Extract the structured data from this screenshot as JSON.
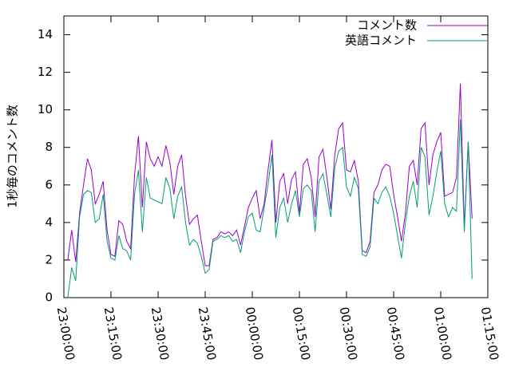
{
  "chart_data": {
    "type": "line",
    "ylabel": "1秒毎のコメント数",
    "ylim": [
      0,
      15
    ],
    "yticks": [
      0,
      2,
      4,
      6,
      8,
      10,
      12,
      14
    ],
    "xlim": [
      "23:00:00",
      "01:15:00"
    ],
    "xticks": [
      "23:00:00",
      "23:15:00",
      "23:30:00",
      "23:45:00",
      "00:00:00",
      "00:15:00",
      "00:30:00",
      "00:45:00",
      "01:00:00",
      "01:15:00"
    ],
    "legend": "top-right",
    "x": [
      "23:01:15",
      "23:02:30",
      "23:03:45",
      "23:05:00",
      "23:06:15",
      "23:07:30",
      "23:08:45",
      "23:10:00",
      "23:11:15",
      "23:12:30",
      "23:13:45",
      "23:15:00",
      "23:16:15",
      "23:17:30",
      "23:18:45",
      "23:20:00",
      "23:21:15",
      "23:22:30",
      "23:23:45",
      "23:25:00",
      "23:26:15",
      "23:27:30",
      "23:28:45",
      "23:30:00",
      "23:31:15",
      "23:32:30",
      "23:33:45",
      "23:35:00",
      "23:36:15",
      "23:37:30",
      "23:38:45",
      "23:40:00",
      "23:41:15",
      "23:42:30",
      "23:43:45",
      "23:45:00",
      "23:46:15",
      "23:47:30",
      "23:48:45",
      "23:50:00",
      "23:51:15",
      "23:52:30",
      "23:53:45",
      "23:55:00",
      "23:56:15",
      "23:57:30",
      "23:58:45",
      "00:00:00",
      "00:01:15",
      "00:02:30",
      "00:03:45",
      "00:05:00",
      "00:06:15",
      "00:07:30",
      "00:08:45",
      "00:10:00",
      "00:11:15",
      "00:12:30",
      "00:13:45",
      "00:15:00",
      "00:16:15",
      "00:17:30",
      "00:18:45",
      "00:20:00",
      "00:21:15",
      "00:22:30",
      "00:23:45",
      "00:25:00",
      "00:26:15",
      "00:27:30",
      "00:28:45",
      "00:30:00",
      "00:31:15",
      "00:32:30",
      "00:33:45",
      "00:35:00",
      "00:36:15",
      "00:37:30",
      "00:38:45",
      "00:40:00",
      "00:41:15",
      "00:42:30",
      "00:43:45",
      "00:45:00",
      "00:46:15",
      "00:47:30",
      "00:48:45",
      "00:50:00",
      "00:51:15",
      "00:52:30",
      "00:53:45",
      "00:55:00",
      "00:56:15",
      "00:57:30",
      "00:58:45",
      "01:00:00",
      "01:01:15",
      "01:02:30",
      "01:03:45",
      "01:05:00",
      "01:06:15",
      "01:07:30",
      "01:08:45",
      "01:10:00"
    ],
    "series": [
      {
        "name": "コメント数",
        "color": "#9400d3",
        "values": [
          2.0,
          3.6,
          1.9,
          4.5,
          6.0,
          7.4,
          6.8,
          5.0,
          5.5,
          6.2,
          3.6,
          2.3,
          2.2,
          4.1,
          3.9,
          3.0,
          2.6,
          6.5,
          8.6,
          4.8,
          8.3,
          7.4,
          7.0,
          7.5,
          7.0,
          8.1,
          7.2,
          5.5,
          7.0,
          7.6,
          5.4,
          3.9,
          4.2,
          4.4,
          3.0,
          1.7,
          1.7,
          3.1,
          3.2,
          3.5,
          3.4,
          3.5,
          3.3,
          3.6,
          2.8,
          3.8,
          4.8,
          5.3,
          5.7,
          4.2,
          5.0,
          6.8,
          8.4,
          4.0,
          6.2,
          6.6,
          5.0,
          6.3,
          6.7,
          4.5,
          7.1,
          7.4,
          6.4,
          4.3,
          7.5,
          7.9,
          6.4,
          4.7,
          7.6,
          9.0,
          9.3,
          6.8,
          6.7,
          7.3,
          6.2,
          2.5,
          2.4,
          3.0,
          5.6,
          6.0,
          6.8,
          7.1,
          7.0,
          5.5,
          4.3,
          3.0,
          4.5,
          7.0,
          7.3,
          6.0,
          9.0,
          9.3,
          6.0,
          7.6,
          8.3,
          8.8,
          5.4,
          5.5,
          5.6,
          6.4,
          11.4,
          3.8,
          8.3,
          4.2
        ]
      },
      {
        "name": "英語コメント",
        "color": "#009e73",
        "values": [
          0.0,
          1.6,
          0.9,
          4.3,
          5.5,
          5.7,
          5.6,
          4.0,
          4.2,
          5.5,
          3.0,
          2.1,
          2.0,
          3.3,
          2.6,
          2.5,
          2.0,
          5.5,
          6.8,
          3.5,
          6.4,
          5.3,
          5.2,
          5.1,
          5.0,
          6.4,
          5.8,
          4.2,
          5.4,
          5.9,
          4.0,
          2.8,
          3.1,
          2.9,
          2.2,
          1.3,
          1.5,
          3.0,
          3.1,
          3.3,
          3.2,
          3.3,
          3.0,
          3.1,
          2.4,
          3.5,
          4.3,
          4.5,
          3.6,
          3.5,
          4.8,
          6.0,
          7.6,
          3.2,
          4.8,
          5.3,
          4.0,
          5.0,
          5.7,
          4.3,
          5.8,
          6.0,
          5.7,
          3.5,
          6.2,
          6.6,
          5.5,
          4.3,
          6.9,
          7.8,
          8.0,
          5.9,
          5.4,
          6.4,
          5.8,
          2.3,
          2.2,
          2.7,
          5.3,
          5.0,
          5.6,
          5.9,
          5.4,
          4.5,
          3.3,
          2.1,
          4.0,
          5.4,
          6.2,
          4.8,
          8.0,
          7.5,
          4.4,
          5.4,
          6.7,
          7.8,
          5.0,
          4.3,
          4.8,
          4.6,
          9.5,
          3.5,
          8.3,
          1.0
        ]
      }
    ]
  }
}
